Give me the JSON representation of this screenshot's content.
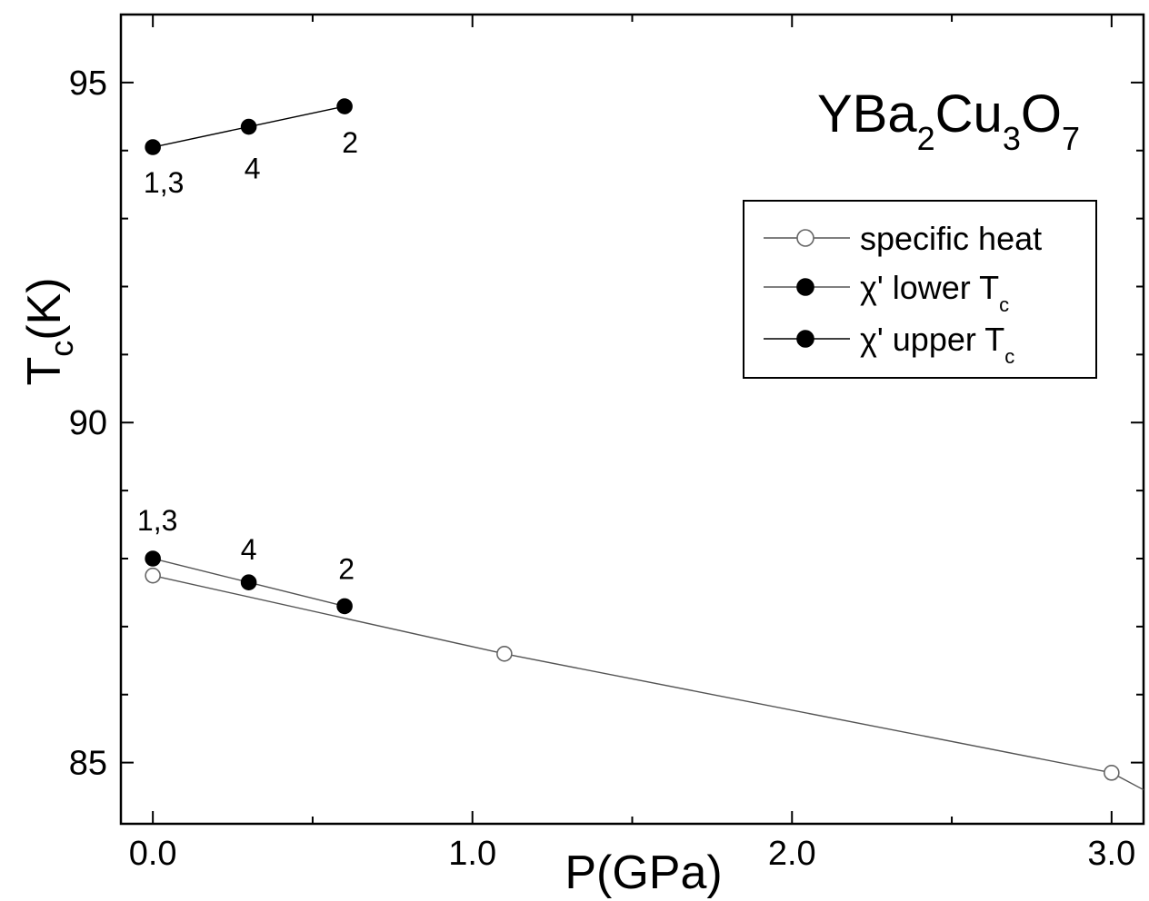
{
  "chart_data": {
    "type": "line",
    "title": {
      "parts": [
        {
          "text": "YBa",
          "sub": false
        },
        {
          "text": "2",
          "sub": true
        },
        {
          "text": "Cu",
          "sub": false
        },
        {
          "text": "3",
          "sub": true
        },
        {
          "text": "O",
          "sub": false
        },
        {
          "text": "7",
          "sub": true
        }
      ]
    },
    "xlabel": "P(GPa)",
    "ylabel": {
      "main": "T",
      "sub": "c",
      "rest": "(K)"
    },
    "xlim": [
      -0.1,
      3.1
    ],
    "ylim": [
      84.1,
      96.0
    ],
    "x_ticks": [
      {
        "value": 0.0,
        "label": "0.0"
      },
      {
        "value": 1.0,
        "label": "1.0"
      },
      {
        "value": 2.0,
        "label": "2.0"
      },
      {
        "value": 3.0,
        "label": "3.0"
      }
    ],
    "x_minor_ticks": [
      0.5,
      1.5,
      2.5
    ],
    "y_ticks": [
      {
        "value": 85,
        "label": "85"
      },
      {
        "value": 90,
        "label": "90"
      },
      {
        "value": 95,
        "label": "95"
      }
    ],
    "y_minor_ticks": [
      86,
      87,
      88,
      89,
      91,
      92,
      93,
      94
    ],
    "grid": false,
    "legend_position": "top-right",
    "series": [
      {
        "name": "specific heat",
        "marker": "open",
        "line_color": "#555555",
        "x": [
          0.0,
          1.1,
          3.0
        ],
        "y": [
          87.75,
          86.6,
          84.85
        ],
        "extend_to": {
          "x": 3.1,
          "y": 84.6
        }
      },
      {
        "name": "χ' lower T",
        "name_sub": "c",
        "marker": "filled",
        "line_color": "#555555",
        "x": [
          0.0,
          0.3,
          0.6
        ],
        "y": [
          88.0,
          87.65,
          87.3
        ],
        "point_labels": [
          "1,3",
          "4",
          "2"
        ]
      },
      {
        "name": "χ' upper T",
        "name_sub": "c",
        "marker": "filled",
        "line_color": "#000000",
        "x": [
          0.0,
          0.3,
          0.6
        ],
        "y": [
          94.05,
          94.35,
          94.65
        ],
        "point_labels": [
          "1,3",
          "4",
          "2"
        ]
      }
    ]
  }
}
